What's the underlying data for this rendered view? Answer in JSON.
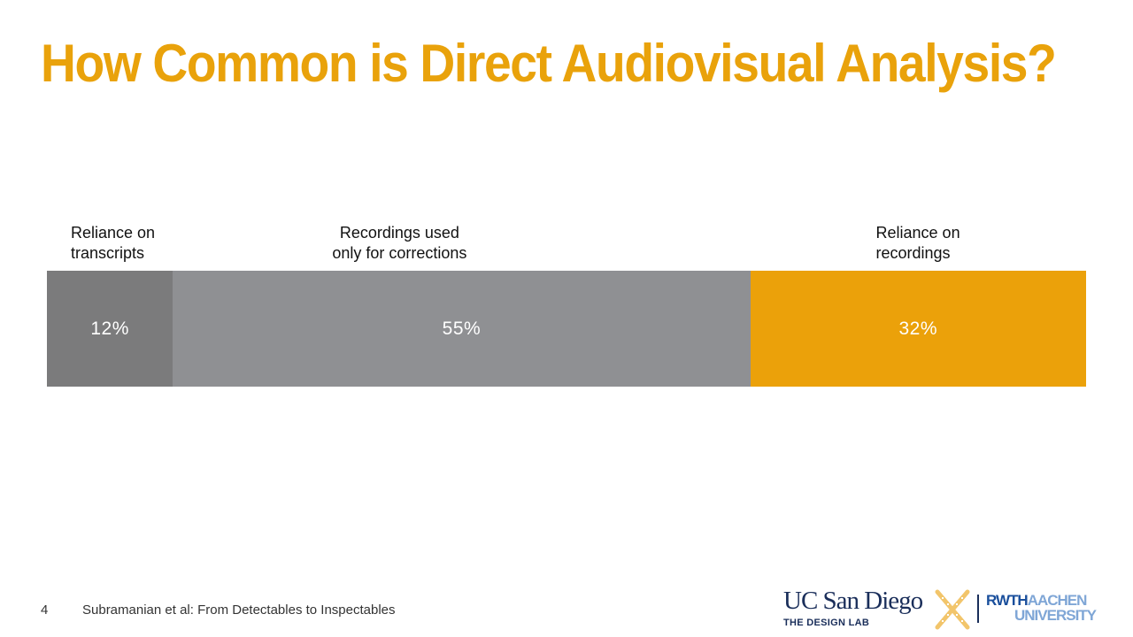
{
  "slide": {
    "title": "How Common is Direct Audiovisual Analysis?",
    "title_color": "#e9a20b",
    "page_number": "4",
    "footer_text": "Subramanian et al: From Detectables to Inspectables"
  },
  "chart_data": {
    "type": "bar",
    "orientation": "horizontal-stacked",
    "categories": [
      "Reliance on transcripts",
      "Recordings used only for corrections",
      "Reliance on recordings"
    ],
    "values": [
      12,
      55,
      32
    ],
    "value_labels": [
      "12%",
      "55%",
      "32%"
    ],
    "label_lines": [
      [
        "Reliance on",
        "transcripts"
      ],
      [
        "Recordings used",
        "only for corrections"
      ],
      [
        "Reliance on",
        "recordings"
      ]
    ],
    "label_align": [
      "left",
      "center",
      "left"
    ],
    "colors": [
      "#7b7b7c",
      "#8f9093",
      "#eba10a"
    ],
    "title": "",
    "xlabel": "",
    "ylabel": "",
    "grid": false
  },
  "logos": {
    "ucsd_name": "UC San Diego",
    "ucsd_sub": "THE DESIGN LAB",
    "rwth_top_strong": "RWTH",
    "rwth_top_light": "AACHEN",
    "rwth_bottom": "UNIVERSITY",
    "x_icon": "x-film-icon",
    "x_color": "#f2c56b"
  }
}
